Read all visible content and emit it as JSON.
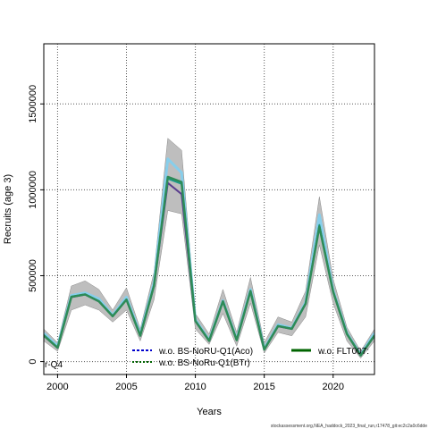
{
  "chart_data": {
    "type": "line",
    "xlabel": "Years",
    "ylabel": "Recruits (age 3)",
    "xlim": [
      1999,
      2023
    ],
    "ylim": [
      -75000,
      1850000
    ],
    "x_ticks": [
      "2000",
      "2005",
      "2010",
      "2015",
      "2020"
    ],
    "y_ticks": [
      "0",
      "500000",
      "1000000",
      "1500000"
    ],
    "grid": true,
    "x": [
      1999,
      2000,
      2001,
      2002,
      2003,
      2004,
      2005,
      2006,
      2007,
      2008,
      2009,
      2010,
      2011,
      2012,
      2013,
      2014,
      2015,
      2016,
      2017,
      2018,
      2019,
      2020,
      2021,
      2022,
      2023
    ],
    "band": {
      "color": "#bebebe",
      "lower": [
        120000,
        60000,
        300000,
        330000,
        300000,
        230000,
        300000,
        120000,
        360000,
        880000,
        860000,
        190000,
        100000,
        280000,
        90000,
        340000,
        50000,
        170000,
        150000,
        260000,
        680000,
        340000,
        120000,
        20000,
        120000
      ],
      "upper": [
        190000,
        110000,
        440000,
        470000,
        420000,
        300000,
        430000,
        190000,
        520000,
        1300000,
        1230000,
        280000,
        160000,
        420000,
        170000,
        490000,
        110000,
        260000,
        230000,
        410000,
        960000,
        480000,
        200000,
        60000,
        190000
      ]
    },
    "series": [
      {
        "name": "",
        "color": "#87ceeb",
        "dash": "",
        "width": 3,
        "values": [
          165000,
          90000,
          385000,
          400000,
          365000,
          270000,
          375000,
          160000,
          460000,
          1180000,
          1100000,
          245000,
          125000,
          355000,
          130000,
          420000,
          75000,
          215000,
          195000,
          345000,
          855000,
          415000,
          165000,
          40000,
          165000
        ]
      },
      {
        "name": "",
        "color": "#5a3e8e",
        "dash": "",
        "width": 2,
        "values": [
          150000,
          80000,
          375000,
          390000,
          350000,
          265000,
          360000,
          150000,
          440000,
          1040000,
          975000,
          235000,
          120000,
          350000,
          125000,
          410000,
          70000,
          205000,
          190000,
          335000,
          790000,
          405000,
          160000,
          35000,
          150000
        ]
      },
      {
        "name": "",
        "color": "#1a9a8a",
        "dash": "",
        "width": 2,
        "values": [
          155000,
          82000,
          378000,
          392000,
          352000,
          265000,
          362000,
          152000,
          445000,
          1065000,
          1035000,
          238000,
          122000,
          352000,
          126000,
          412000,
          71000,
          208000,
          192000,
          338000,
          795000,
          408000,
          162000,
          37000,
          153000
        ]
      },
      {
        "name": "",
        "color": "#2e8b57",
        "dash": "",
        "width": 2.5,
        "values": [
          152000,
          81000,
          377000,
          391000,
          351000,
          264000,
          361000,
          151000,
          443000,
          1075000,
          1045000,
          237000,
          121000,
          351000,
          125000,
          411000,
          70000,
          207000,
          191000,
          337000,
          785000,
          407000,
          161000,
          36000,
          152000
        ]
      }
    ],
    "legend": {
      "placement": "bottom",
      "entries": [
        {
          "label": "w.o. BS-NoRU-Q1(Aco)",
          "color": "#0000cd",
          "dash": "3,2",
          "width": 2
        },
        {
          "label": "w.o. BS-NoRu-Q1(BTr)",
          "color": "#006400",
          "dash": "2,2",
          "width": 2
        },
        {
          "label": "w.o. FLT007:",
          "color": "#006400",
          "dash": "",
          "width": 3
        }
      ],
      "left_fragment": "r-Q4"
    },
    "footer": "stockassessment.org,NEA_haddock_2023_final_run,r17478_git:ec2c2a0c6dde"
  }
}
